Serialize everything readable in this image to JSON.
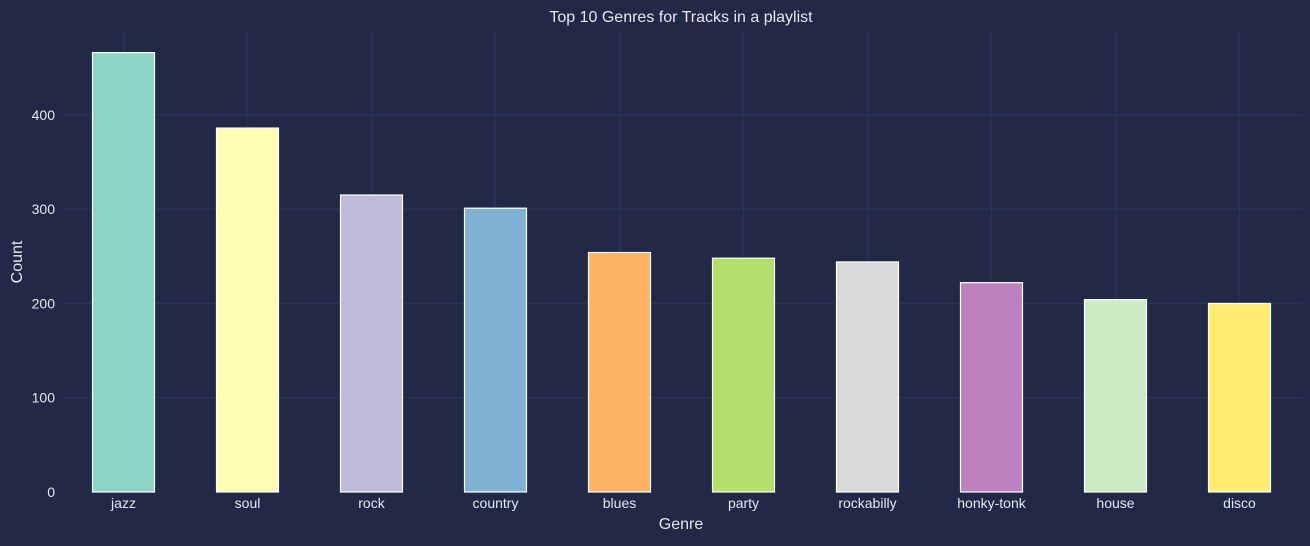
{
  "chart_data": {
    "type": "bar",
    "title": "Top 10 Genres for Tracks in a playlist",
    "xlabel": "Genre",
    "ylabel": "Count",
    "categories": [
      "jazz",
      "soul",
      "rock",
      "country",
      "blues",
      "party",
      "rockabilly",
      "honky-tonk",
      "house",
      "disco"
    ],
    "values": [
      466,
      386,
      315,
      301,
      254,
      248,
      244,
      222,
      204,
      200
    ],
    "colors": [
      "#8dd3c7",
      "#ffffb3",
      "#bebada",
      "#80b1d3",
      "#fdb462",
      "#b3de69",
      "#d9d9d9",
      "#bc80bd",
      "#ccebc5",
      "#ffed6f"
    ],
    "yticks": [
      0,
      100,
      200,
      300,
      400
    ],
    "ylim": [
      0,
      490
    ],
    "grid": true,
    "legend": "none"
  },
  "theme": {
    "background": "#212946",
    "grid_color": "#2A3459",
    "text_color": "#e6e6ee",
    "bar_edge": "#ffffff"
  }
}
